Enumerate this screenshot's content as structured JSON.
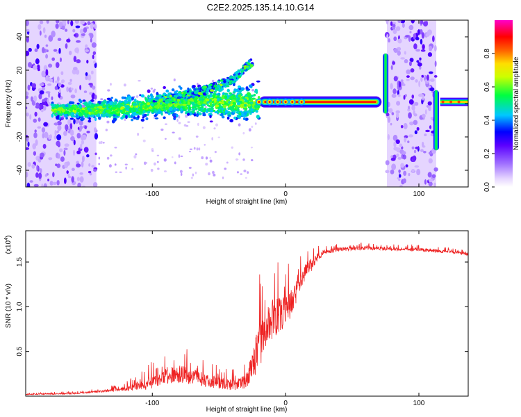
{
  "title": "C2E2.2025.135.14.10.G14",
  "chart_data": [
    {
      "type": "heatmap",
      "xlabel": "Height of straight line (km)",
      "ylabel": "Frequency (Hz)",
      "xlim": [
        -195,
        137
      ],
      "ylim": [
        -50,
        50
      ],
      "xticks": [
        -100,
        0,
        100
      ],
      "xtick_labels": [
        "-100",
        "0",
        "100"
      ],
      "yticks": [
        -40,
        -20,
        0,
        20,
        40
      ],
      "ytick_labels": [
        "-40",
        "-20",
        "0",
        "20",
        "40"
      ],
      "colorbar": {
        "label": "Normalized spectral amplitude",
        "range": [
          0.0,
          1.0
        ],
        "ticks": [
          0.0,
          0.2,
          0.4,
          0.6,
          0.8
        ],
        "tick_labels": [
          "0.0",
          "0.2",
          "0.4",
          "0.6",
          "0.8"
        ],
        "colormap": [
          "#ffffff",
          "#b48cff",
          "#6a00ff",
          "#0000ff",
          "#00e0ff",
          "#00ff00",
          "#ffff00",
          "#ff8000",
          "#ff0000",
          "#ff00c8"
        ]
      },
      "noise_bands": [
        [
          -195,
          -142
        ],
        [
          76,
          113
        ]
      ],
      "signal_track": {
        "x": [
          -170,
          -150,
          -120,
          -100,
          -80,
          -60,
          -40,
          -20,
          0,
          20,
          40,
          60,
          72
        ],
        "y": [
          -4,
          -4,
          -3,
          -1,
          1,
          1,
          0,
          1,
          1,
          1,
          1,
          1,
          1
        ]
      },
      "upper_branch": {
        "x": [
          -100,
          -80,
          -60,
          -40,
          -25
        ],
        "y": [
          0,
          4,
          8,
          14,
          25
        ]
      },
      "spikes": [
        {
          "x": 75,
          "ymin": -6,
          "ymax": 30
        },
        {
          "x": 113,
          "ymin": -28,
          "ymax": 8
        }
      ]
    },
    {
      "type": "line",
      "xlabel": "Height of straight line (km)",
      "ylabel": "SNR (10 * v/v)",
      "yscale_label": "(x10",
      "yscale_exponent": "4",
      "xlim": [
        -195,
        137
      ],
      "ylim": [
        0,
        1.85
      ],
      "xticks": [
        -100,
        0,
        100
      ],
      "xtick_labels": [
        "-100",
        "0",
        "100"
      ],
      "yticks": [
        0.5,
        1.0,
        1.5
      ],
      "ytick_labels": [
        "0.5",
        "1.0",
        "1.5"
      ],
      "color": "#ee2222",
      "trend": {
        "x": [
          -195,
          -160,
          -140,
          -120,
          -100,
          -90,
          -80,
          -70,
          -60,
          -50,
          -40,
          -30,
          -25,
          -20,
          -15,
          -10,
          -5,
          0,
          5,
          10,
          15,
          20,
          25,
          30,
          40,
          60,
          80,
          100,
          120,
          137
        ],
        "y": [
          0.02,
          0.03,
          0.05,
          0.08,
          0.15,
          0.22,
          0.25,
          0.22,
          0.18,
          0.15,
          0.12,
          0.16,
          0.35,
          0.55,
          0.75,
          0.85,
          0.9,
          0.95,
          1.05,
          1.25,
          1.4,
          1.52,
          1.6,
          1.63,
          1.66,
          1.67,
          1.66,
          1.65,
          1.63,
          1.6
        ]
      },
      "noise_amplitude": {
        "x": [
          -195,
          -140,
          -120,
          -100,
          -80,
          -60,
          -40,
          -30,
          -20,
          -10,
          0,
          10,
          20,
          30,
          60,
          137
        ],
        "y": [
          0.01,
          0.02,
          0.05,
          0.15,
          0.2,
          0.15,
          0.12,
          0.15,
          0.5,
          0.45,
          0.35,
          0.3,
          0.15,
          0.06,
          0.05,
          0.04
        ]
      }
    }
  ]
}
